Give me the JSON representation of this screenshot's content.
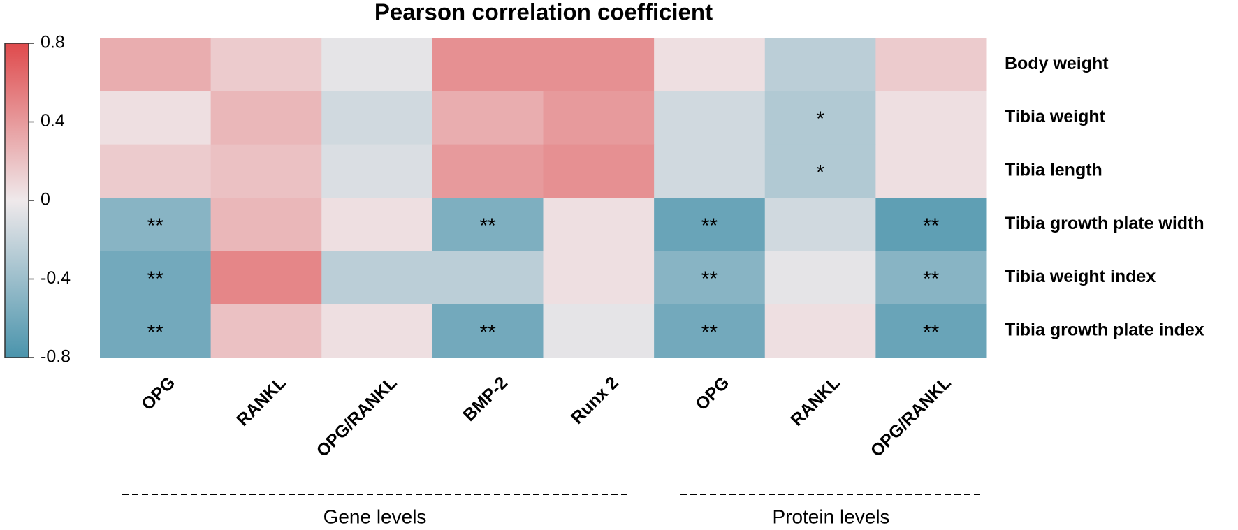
{
  "chart_data": {
    "type": "heatmap",
    "title": "Pearson correlation coefficient",
    "columns": [
      "OPG",
      "RANKL",
      "OPG/RANKL",
      "BMP-2",
      "Runx 2",
      "OPG",
      "RANKL",
      "OPG/RANKL"
    ],
    "rows": [
      "Body weight",
      "Tibia weight",
      "Tibia length",
      "Tibia growth plate width",
      "Tibia weight index",
      "Tibia growth plate index"
    ],
    "values": [
      [
        0.3,
        0.15,
        -0.05,
        0.45,
        0.45,
        0.05,
        -0.25,
        0.15
      ],
      [
        0.05,
        0.25,
        -0.15,
        0.3,
        0.4,
        -0.15,
        -0.3,
        0.05
      ],
      [
        0.15,
        0.2,
        -0.1,
        0.4,
        0.45,
        -0.15,
        -0.3,
        0.05
      ],
      [
        -0.5,
        0.25,
        0.05,
        -0.55,
        0.05,
        -0.65,
        -0.15,
        -0.7
      ],
      [
        -0.6,
        0.5,
        -0.25,
        -0.25,
        0.05,
        -0.5,
        -0.05,
        -0.5
      ],
      [
        -0.6,
        0.2,
        0.05,
        -0.6,
        -0.05,
        -0.6,
        0.05,
        -0.65
      ]
    ],
    "significance": [
      [
        null,
        null,
        null,
        null,
        null,
        null,
        null,
        null
      ],
      [
        null,
        null,
        null,
        null,
        null,
        null,
        "*",
        null
      ],
      [
        null,
        null,
        null,
        null,
        null,
        null,
        "*",
        null
      ],
      [
        "**",
        null,
        null,
        "**",
        null,
        "**",
        null,
        "**"
      ],
      [
        "**",
        null,
        null,
        null,
        null,
        "**",
        null,
        "**"
      ],
      [
        "**",
        null,
        null,
        "**",
        null,
        "**",
        null,
        "**"
      ]
    ],
    "groups": [
      "Gene levels",
      "Protein levels"
    ],
    "zlim": [
      -0.8,
      0.8
    ],
    "zticks": [
      0.8,
      0.4,
      0,
      -0.4,
      -0.8
    ],
    "colorscale": {
      "low": "#4a94ac",
      "mid": "#efe9eb",
      "high": "#df4a4c"
    }
  }
}
